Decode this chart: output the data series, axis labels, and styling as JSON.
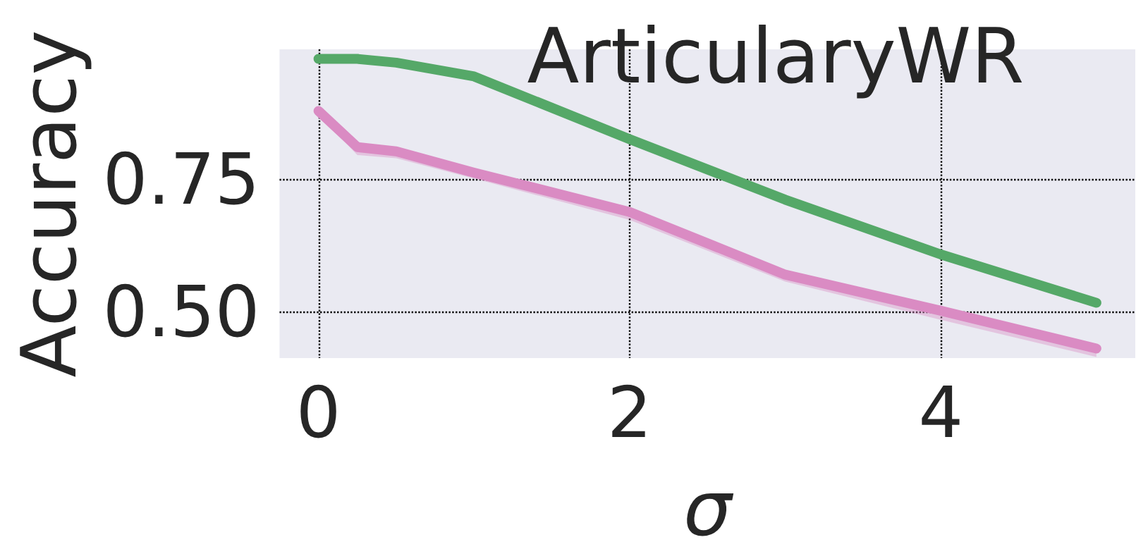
{
  "chart_data": {
    "type": "line",
    "title": "ArticularyWR",
    "xlabel": "σ",
    "ylabel": "Accuracy",
    "xlim": [
      -0.25,
      5.25
    ],
    "xticks": [
      0,
      2,
      4
    ],
    "ylim": [
      0.414,
      0.995
    ],
    "yticks": [
      {
        "value": 0.5,
        "label": "0.50"
      },
      0.75
    ],
    "grid": true,
    "line_style": "solid",
    "series": [
      {
        "color": "#55a868",
        "x": [
          0,
          0.25,
          0.5,
          1,
          2,
          3,
          4,
          5
        ],
        "values": [
          0.977,
          0.977,
          0.97,
          0.944,
          0.826,
          0.712,
          0.609,
          0.518
        ]
      },
      {
        "color": "#da8bc3",
        "x": [
          0,
          0.25,
          0.5,
          1,
          2,
          3,
          4,
          5
        ],
        "values": [
          0.879,
          0.811,
          0.803,
          0.763,
          0.689,
          0.571,
          0.503,
          0.432
        ],
        "lower": [
          0.872,
          0.796,
          0.79,
          0.752,
          0.674,
          0.558,
          0.486,
          0.416
        ],
        "upper": [
          0.884,
          0.814,
          0.806,
          0.767,
          0.693,
          0.575,
          0.508,
          0.438
        ]
      }
    ]
  }
}
